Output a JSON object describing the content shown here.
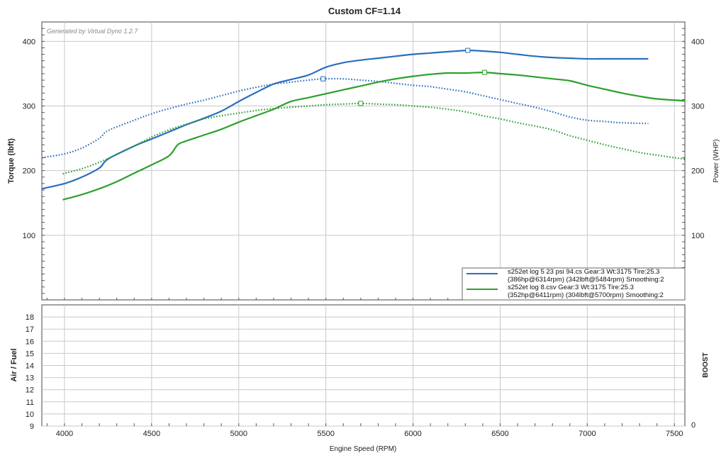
{
  "chart_data": [
    {
      "type": "line",
      "title": "Custom CF=1.14",
      "watermark": "Generated by Virtual Dyno 1.2.7",
      "xlabel": "Engine Speed (RPM)",
      "ylabel": "Torque (lbft)",
      "y2label": "Power (WHP)",
      "xlim": [
        3870,
        7560
      ],
      "ylim": [
        0,
        430
      ],
      "xticks": [
        4000,
        4500,
        5000,
        5500,
        6000,
        6500,
        7000,
        7500
      ],
      "yticks": [
        100,
        200,
        300,
        400
      ],
      "y2ticks": [
        100,
        200,
        300,
        400
      ],
      "grid": true,
      "legend_position": "bottom-right",
      "colors": {
        "run1": "#2a6fbe",
        "run2": "#2ca02c"
      },
      "legend": [
        {
          "line1": "s252et log 5 23 psi 94.cs Gear:3 Wt:3175 Tire:25.3",
          "line2": "(386hp@6314rpm) (342lbft@5484rpm) Smoothing:2",
          "color": "#2a6fbe"
        },
        {
          "line1": "s252et log 8.csv Gear:3 Wt:3175 Tire:25.3",
          "line2": "(352hp@6411rpm) (304lbft@5700rpm) Smoothing:2",
          "color": "#2ca02c"
        }
      ],
      "series": [
        {
          "key": "run1-power",
          "color": "#2a6fbe",
          "style": "solid",
          "x": [
            3870,
            4000,
            4100,
            4200,
            4250,
            4400,
            4500,
            4600,
            4700,
            4800,
            4900,
            5000,
            5100,
            5200,
            5300,
            5400,
            5500,
            5600,
            5700,
            5800,
            5900,
            6000,
            6100,
            6200,
            6314,
            6400,
            6500,
            6600,
            6700,
            6800,
            6900,
            7000,
            7100,
            7200,
            7350
          ],
          "values": [
            172,
            180,
            190,
            204,
            218,
            238,
            249,
            260,
            271,
            281,
            292,
            307,
            321,
            334,
            341,
            348,
            360,
            367,
            371,
            374,
            377,
            380,
            382,
            384,
            386,
            385,
            383,
            380,
            377,
            375,
            374,
            373,
            373,
            373,
            373
          ],
          "marker": {
            "x": 6314,
            "y": 386
          }
        },
        {
          "key": "run1-torque",
          "color": "#2a6fbe",
          "style": "dotted",
          "x": [
            3870,
            4000,
            4100,
            4200,
            4250,
            4400,
            4500,
            4600,
            4700,
            4800,
            4900,
            5000,
            5100,
            5200,
            5300,
            5400,
            5484,
            5600,
            5700,
            5800,
            5900,
            6000,
            6100,
            6200,
            6300,
            6400,
            6500,
            6600,
            6700,
            6800,
            6900,
            7000,
            7100,
            7200,
            7350
          ],
          "values": [
            220,
            226,
            235,
            250,
            262,
            278,
            288,
            296,
            303,
            309,
            316,
            323,
            329,
            334,
            337,
            340,
            342,
            342,
            340,
            338,
            335,
            332,
            330,
            326,
            322,
            316,
            310,
            304,
            298,
            291,
            283,
            278,
            276,
            274,
            273
          ],
          "marker": {
            "x": 5484,
            "y": 342
          }
        },
        {
          "key": "run2-power",
          "color": "#2ca02c",
          "style": "solid",
          "x": [
            3990,
            4100,
            4200,
            4300,
            4400,
            4500,
            4600,
            4650,
            4700,
            4800,
            4900,
            5000,
            5100,
            5200,
            5300,
            5400,
            5500,
            5600,
            5700,
            5800,
            5900,
            6000,
            6100,
            6200,
            6300,
            6411,
            6500,
            6600,
            6700,
            6800,
            6900,
            7000,
            7100,
            7200,
            7300,
            7400,
            7560
          ],
          "values": [
            155,
            163,
            172,
            183,
            196,
            209,
            223,
            240,
            246,
            255,
            264,
            275,
            285,
            295,
            307,
            313,
            319,
            325,
            331,
            337,
            342,
            346,
            349,
            351,
            351,
            352,
            350,
            348,
            345,
            342,
            339,
            332,
            326,
            320,
            315,
            311,
            308
          ],
          "marker": {
            "x": 6411,
            "y": 352
          }
        },
        {
          "key": "run2-torque",
          "color": "#2ca02c",
          "style": "dotted",
          "x": [
            3990,
            4100,
            4200,
            4300,
            4400,
            4500,
            4600,
            4700,
            4800,
            4900,
            5000,
            5100,
            5200,
            5300,
            5400,
            5500,
            5600,
            5700,
            5800,
            5900,
            6000,
            6100,
            6200,
            6300,
            6400,
            6500,
            6600,
            6700,
            6800,
            6900,
            7000,
            7100,
            7200,
            7300,
            7400,
            7500,
            7560
          ],
          "values": [
            195,
            203,
            213,
            225,
            238,
            252,
            263,
            272,
            280,
            285,
            289,
            293,
            296,
            298,
            300,
            302,
            303,
            304,
            303,
            302,
            300,
            298,
            295,
            291,
            285,
            280,
            274,
            269,
            263,
            254,
            247,
            240,
            234,
            228,
            224,
            220,
            218
          ],
          "marker": {
            "x": 5700,
            "y": 304
          }
        }
      ]
    },
    {
      "type": "line",
      "ylabel": "Air / Fuel",
      "y2label": "BOOST",
      "xlim": [
        3870,
        7560
      ],
      "ylim": [
        9,
        19
      ],
      "yticks": [
        9,
        10,
        11,
        12,
        13,
        14,
        15,
        16,
        17,
        18
      ],
      "y2ticks": [
        0
      ],
      "grid": true,
      "series": []
    }
  ]
}
